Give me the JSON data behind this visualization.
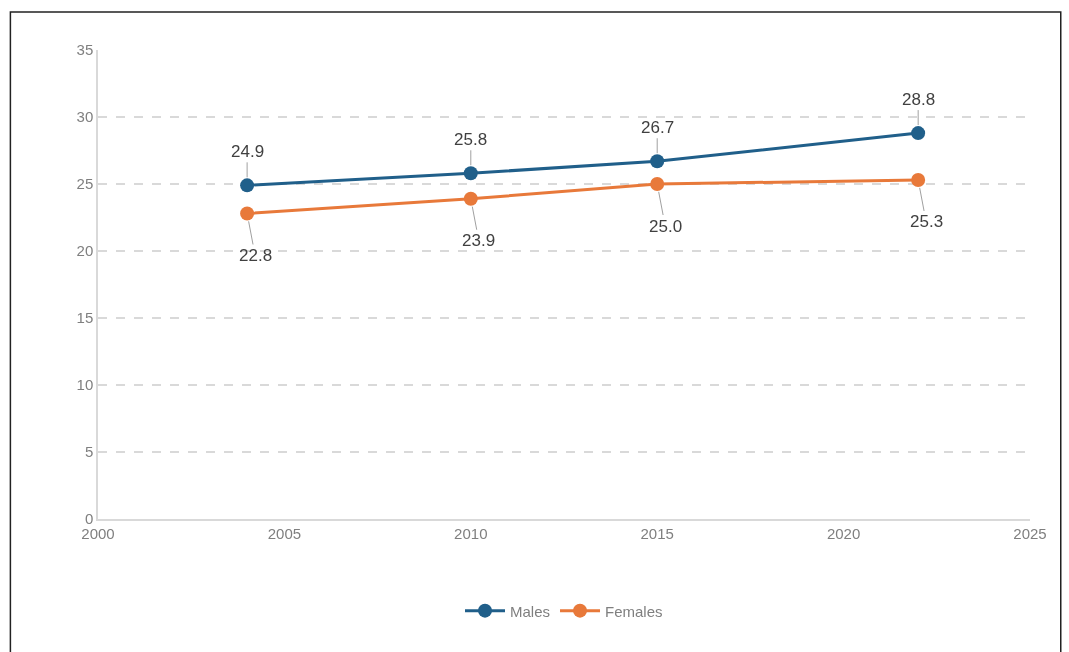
{
  "chart_data": {
    "type": "line",
    "x": [
      2004,
      2010,
      2015,
      2022
    ],
    "series": [
      {
        "name": "Males",
        "color": "#205f8a",
        "values": [
          24.9,
          25.8,
          26.7,
          28.8
        ],
        "value_labels": [
          "24.9",
          "25.8",
          "26.7",
          "28.8"
        ]
      },
      {
        "name": "Females",
        "color": "#e8793a",
        "values": [
          22.8,
          23.9,
          25.0,
          25.3
        ],
        "value_labels": [
          "22.8",
          "23.9",
          "25.0",
          "25.3"
        ]
      }
    ],
    "xlim": [
      2000,
      2025
    ],
    "xticks": [
      2000,
      2005,
      2010,
      2015,
      2020,
      2025
    ],
    "ylim": [
      0,
      35
    ],
    "yticks": [
      0,
      5,
      10,
      15,
      20,
      25,
      30,
      35
    ],
    "grid": "y",
    "legend": "bottom",
    "marker": "circle",
    "line_style": "solid"
  }
}
